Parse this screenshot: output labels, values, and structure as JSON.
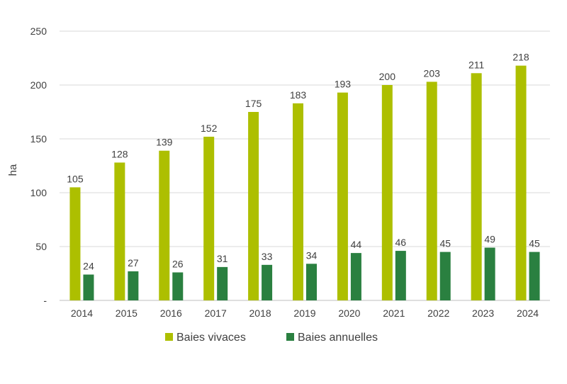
{
  "chart_data": {
    "type": "bar",
    "categories": [
      "2014",
      "2015",
      "2016",
      "2017",
      "2018",
      "2019",
      "2020",
      "2021",
      "2022",
      "2023",
      "2024"
    ],
    "series": [
      {
        "name": "Baies vivaces",
        "values": [
          105,
          128,
          139,
          152,
          175,
          183,
          193,
          200,
          203,
          211,
          218
        ],
        "color": "#adbf00"
      },
      {
        "name": "Baies annuelles",
        "values": [
          24,
          27,
          26,
          31,
          33,
          34,
          44,
          46,
          45,
          49,
          45
        ],
        "color": "#2a8040"
      }
    ],
    "ylabel": "ha",
    "ylim": [
      0,
      250
    ],
    "yticks": [
      "-",
      "50",
      "100",
      "150",
      "200",
      "250"
    ],
    "grid": true,
    "legend_position": "bottom"
  }
}
